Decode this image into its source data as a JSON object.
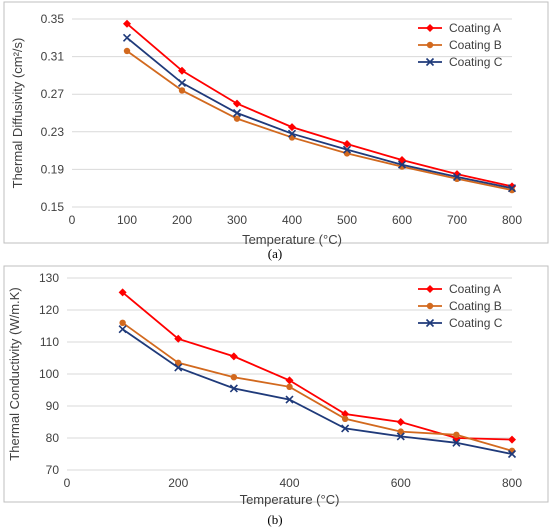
{
  "chart_data": [
    {
      "type": "line",
      "panel_label": "(a)",
      "xlabel": "Temperature (°C)",
      "ylabel": "Thermal Diffusivity (cm²/s)",
      "xlim": [
        0,
        800
      ],
      "ylim": [
        0.15,
        0.35
      ],
      "xticks": [
        0,
        100,
        200,
        300,
        400,
        500,
        600,
        700,
        800
      ],
      "yticks": [
        0.15,
        0.19,
        0.23,
        0.27,
        0.31,
        0.35
      ],
      "ytick_labels": [
        "0.15",
        "0.19",
        "0.23",
        "0.27",
        "0.31",
        "0.35"
      ],
      "grid": true,
      "legend_position": "top-right",
      "x": [
        100,
        200,
        300,
        400,
        500,
        600,
        700,
        800
      ],
      "series": [
        {
          "name": "Coating A",
          "color": "#ff0000",
          "marker": "diamond",
          "values": [
            0.345,
            0.295,
            0.26,
            0.235,
            0.217,
            0.2,
            0.185,
            0.172
          ]
        },
        {
          "name": "Coating B",
          "color": "#d2691e",
          "marker": "circle",
          "values": [
            0.316,
            0.274,
            0.244,
            0.224,
            0.207,
            0.193,
            0.18,
            0.168
          ]
        },
        {
          "name": "Coating C",
          "color": "#1f3a7a",
          "marker": "x",
          "values": [
            0.33,
            0.282,
            0.25,
            0.228,
            0.211,
            0.195,
            0.182,
            0.17
          ]
        }
      ]
    },
    {
      "type": "line",
      "panel_label": "(b)",
      "xlabel": "Temperature (°C)",
      "ylabel": "Thermal Conductivity (W/m.K)",
      "xlim": [
        0,
        800
      ],
      "ylim": [
        70,
        130
      ],
      "xticks": [
        0,
        200,
        400,
        600,
        800
      ],
      "yticks": [
        70,
        80,
        90,
        100,
        110,
        120,
        130
      ],
      "ytick_labels": [
        "70",
        "80",
        "90",
        "100",
        "110",
        "120",
        "130"
      ],
      "grid": true,
      "legend_position": "top-right",
      "x": [
        100,
        200,
        300,
        400,
        500,
        600,
        700,
        800
      ],
      "series": [
        {
          "name": "Coating A",
          "color": "#ff0000",
          "marker": "diamond",
          "values": [
            125.5,
            111,
            105.5,
            98,
            87.5,
            85,
            80,
            79.5
          ]
        },
        {
          "name": "Coating B",
          "color": "#d2691e",
          "marker": "circle",
          "values": [
            116,
            103.5,
            99,
            96,
            86,
            82,
            81,
            76
          ]
        },
        {
          "name": "Coating C",
          "color": "#1f3a7a",
          "marker": "x",
          "values": [
            114,
            102,
            95.5,
            92,
            83,
            80.5,
            78.5,
            75
          ]
        }
      ]
    }
  ]
}
